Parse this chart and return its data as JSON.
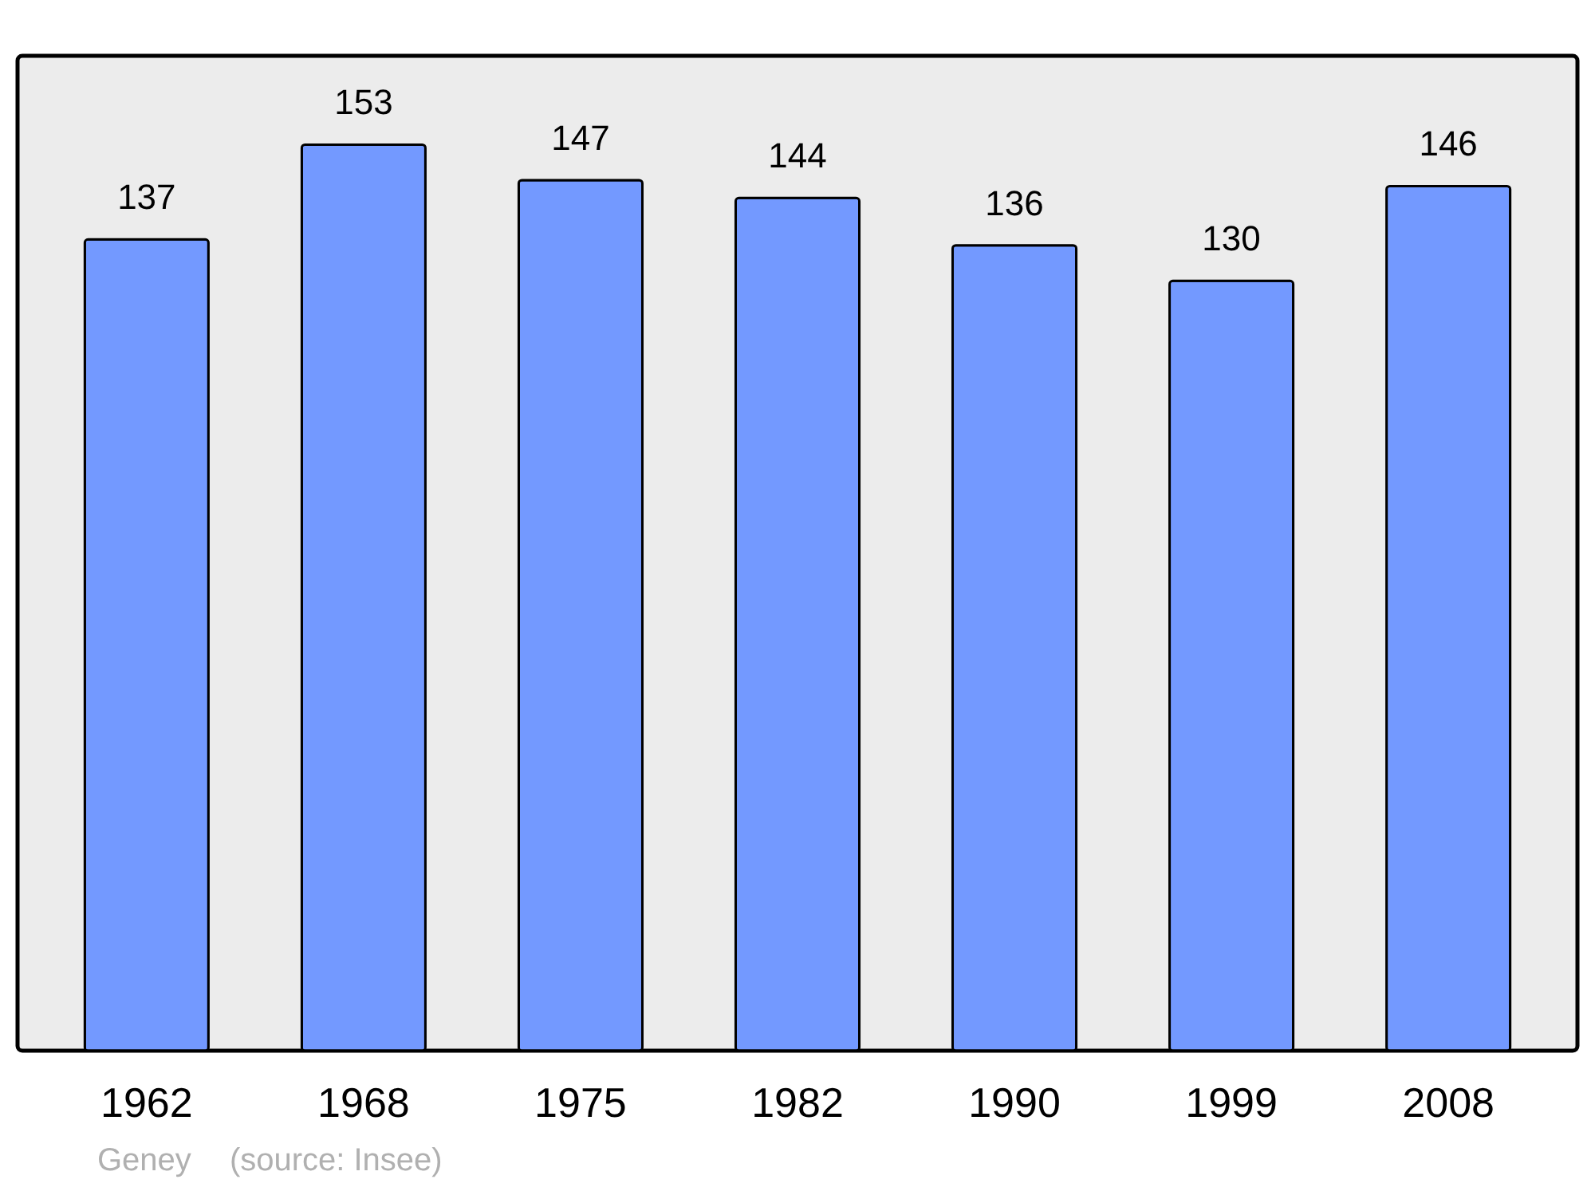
{
  "chart_data": {
    "type": "bar",
    "categories": [
      "1962",
      "1968",
      "1975",
      "1982",
      "1990",
      "1999",
      "2008"
    ],
    "values": [
      137,
      153,
      147,
      144,
      136,
      130,
      146
    ],
    "color": "#7399ff",
    "data_labels": true,
    "ylim": [
      0,
      168
    ],
    "annotations": [
      "Geney",
      "(source: Insee)"
    ]
  }
}
